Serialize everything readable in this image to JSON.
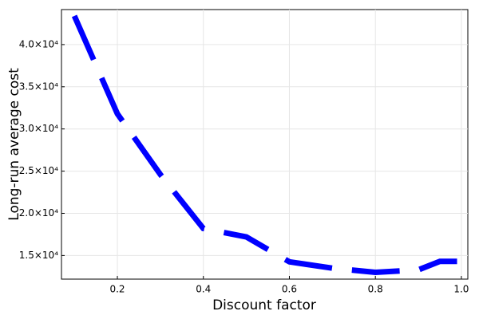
{
  "chart_data": {
    "type": "line",
    "xlabel": "Discount factor",
    "ylabel": "Long-run average cost",
    "x": [
      0.1,
      0.2,
      0.3,
      0.4,
      0.5,
      0.6,
      0.7,
      0.8,
      0.9,
      0.95,
      0.99
    ],
    "series": [
      {
        "color": "#0000ff",
        "values": [
          43400,
          31800,
          24600,
          18200,
          17200,
          14250,
          13500,
          13000,
          13300,
          14300,
          14300
        ]
      }
    ],
    "xlim": [
      0.07,
      1.015
    ],
    "ylim": [
      12200,
      44150
    ],
    "xticks": [
      0.2,
      0.4,
      0.6,
      0.8,
      {
        "value": 1,
        "label": "1.0"
      }
    ],
    "yticks": [
      {
        "value": 15000,
        "label": "1.5×10⁴"
      },
      {
        "value": 20000,
        "label": "2.0×10⁴"
      },
      {
        "value": 25000,
        "label": "2.5×10⁴"
      },
      {
        "value": 30000,
        "label": "3.0×10⁴"
      },
      {
        "value": 35000,
        "label": "3.5×10⁴"
      },
      {
        "value": 40000,
        "label": "4.0×10⁴"
      }
    ],
    "grid": true
  }
}
